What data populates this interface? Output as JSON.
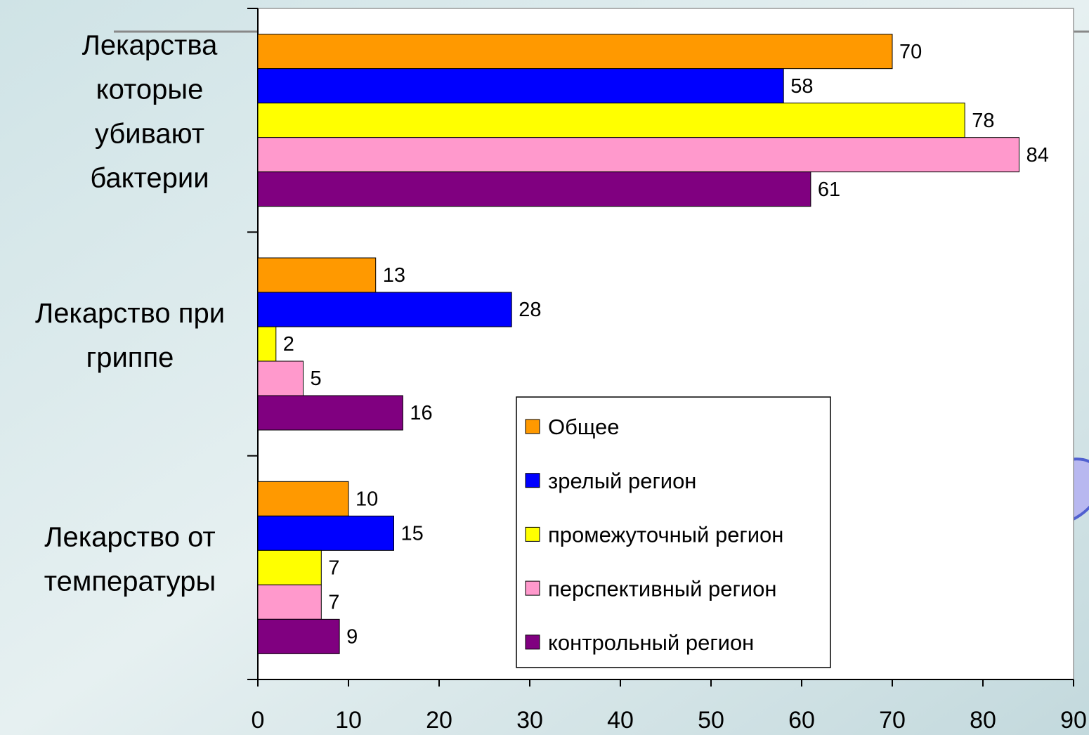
{
  "chart_data": {
    "type": "bar",
    "orientation": "horizontal",
    "categories": [
      "Лекарства которые убивают бактерии",
      "Лекарство при гриппе",
      "Лекарство от температуры"
    ],
    "series": [
      {
        "name": "Общее",
        "color": "#ff9900",
        "values": [
          70,
          13,
          10
        ]
      },
      {
        "name": "зрелый регион",
        "color": "#0000ff",
        "values": [
          58,
          28,
          15
        ]
      },
      {
        "name": "промежуточный регион",
        "color": "#ffff00",
        "values": [
          78,
          2,
          7
        ]
      },
      {
        "name": "перспективный регион",
        "color": "#ff99cc",
        "values": [
          84,
          5,
          7
        ]
      },
      {
        "name": "контрольный регион",
        "color": "#800080",
        "values": [
          61,
          16,
          9
        ]
      }
    ],
    "xlim": [
      0,
      90
    ],
    "xticks": [
      0,
      10,
      20,
      30,
      40,
      50,
      60,
      70,
      80,
      90
    ],
    "grid": false,
    "legend": "lower right"
  }
}
